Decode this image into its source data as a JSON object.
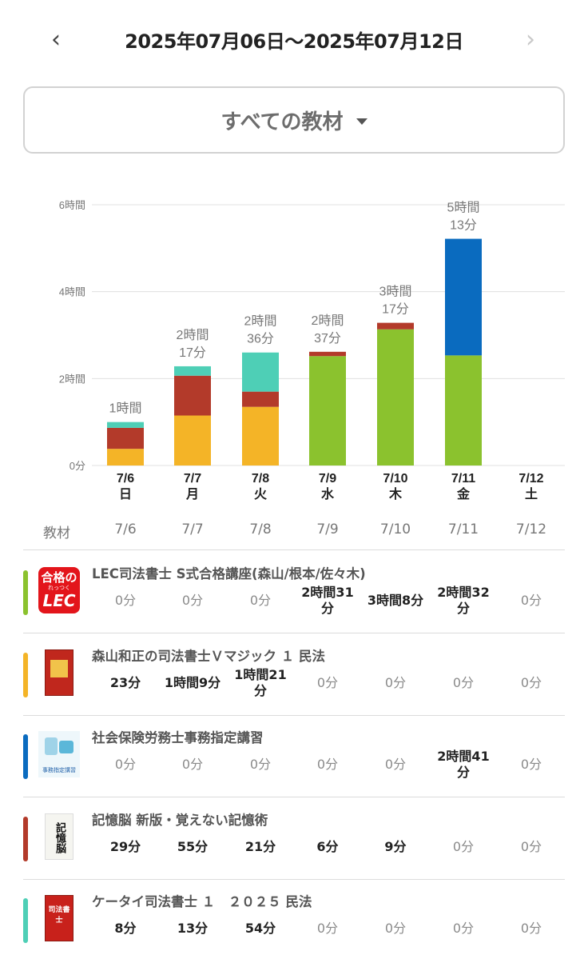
{
  "header": {
    "date_range": "2025年07月06日〜2025年07月12日",
    "prev": "‹",
    "next": "›"
  },
  "filter": {
    "label": "すべての教材"
  },
  "colors": {
    "lec": "#8bc22e",
    "vmagic": "#f4b427",
    "sharo": "#0a6bbf",
    "kioku": "#b33a2a",
    "keitai": "#4ecfb6"
  },
  "chart_data": {
    "type": "bar",
    "stacked": true,
    "y_unit": "minutes",
    "ylim": [
      0,
      360
    ],
    "yticks": [
      {
        "value": 0,
        "label": "0分"
      },
      {
        "value": 120,
        "label": "2時間"
      },
      {
        "value": 240,
        "label": "4時間"
      },
      {
        "value": 360,
        "label": "6時間"
      }
    ],
    "categories": [
      {
        "date": "7/6",
        "dow": "日"
      },
      {
        "date": "7/7",
        "dow": "月"
      },
      {
        "date": "7/8",
        "dow": "火"
      },
      {
        "date": "7/9",
        "dow": "水"
      },
      {
        "date": "7/10",
        "dow": "木"
      },
      {
        "date": "7/11",
        "dow": "金"
      },
      {
        "date": "7/12",
        "dow": "土"
      }
    ],
    "totals": [
      "1時間",
      "2時間\n17分",
      "2時間\n36分",
      "2時間\n37分",
      "3時間\n17分",
      "5時間\n13分",
      ""
    ],
    "series": [
      {
        "key": "vmagic",
        "color": "#f4b427",
        "values": [
          23,
          69,
          81,
          0,
          0,
          0,
          0
        ]
      },
      {
        "key": "lec",
        "color": "#8bc22e",
        "values": [
          0,
          0,
          0,
          151,
          188,
          152,
          0
        ]
      },
      {
        "key": "sharo",
        "color": "#0a6bbf",
        "values": [
          0,
          0,
          0,
          0,
          0,
          161,
          0
        ]
      },
      {
        "key": "kioku",
        "color": "#b33a2a",
        "values": [
          29,
          55,
          21,
          6,
          9,
          0,
          0
        ]
      },
      {
        "key": "keitai",
        "color": "#4ecfb6",
        "values": [
          8,
          13,
          54,
          0,
          0,
          0,
          0
        ]
      }
    ],
    "grid": true
  },
  "table": {
    "header_label": "教材",
    "dates": [
      "7/6",
      "7/7",
      "7/8",
      "7/9",
      "7/10",
      "7/11",
      "7/12"
    ],
    "rows": [
      {
        "title": "LEC司法書士 S式合格講座(森山/根本/佐々木)",
        "color": "#8bc22e",
        "icon": "lec-logo-icon",
        "logo_text": "合格の",
        "logo_sub": "れっつく",
        "logo_brand": "LEC",
        "cells": [
          "0分",
          "0分",
          "0分",
          "2時間31\n分",
          "3時間8分",
          "2時間32\n分",
          "0分"
        ]
      },
      {
        "title": "森山和正の司法書士Ｖマジック １ 民法",
        "color": "#f4b427",
        "icon": "book-cover-icon",
        "cells": [
          "23分",
          "1時間9分",
          "1時間21\n分",
          "0分",
          "0分",
          "0分",
          "0分"
        ]
      },
      {
        "title": "社会保険労務士事務指定講習",
        "color": "#0a6bbf",
        "icon": "course-illustration-icon",
        "thumb_caption": "事務指定講習",
        "cells": [
          "0分",
          "0分",
          "0分",
          "0分",
          "0分",
          "2時間41\n分",
          "0分"
        ]
      },
      {
        "title": "記憶脳 新版・覚えない記憶術",
        "color": "#b33a2a",
        "icon": "book-cover-icon",
        "cover_text": "記憶脳",
        "cells": [
          "29分",
          "55分",
          "21分",
          "6分",
          "9分",
          "0分",
          "0分"
        ]
      },
      {
        "title": "ケータイ司法書士 １　２０２５ 民法",
        "color": "#4ecfb6",
        "icon": "book-cover-icon",
        "cover_text": "司法書士",
        "cells": [
          "8分",
          "13分",
          "54分",
          "0分",
          "0分",
          "0分",
          "0分"
        ]
      }
    ]
  }
}
